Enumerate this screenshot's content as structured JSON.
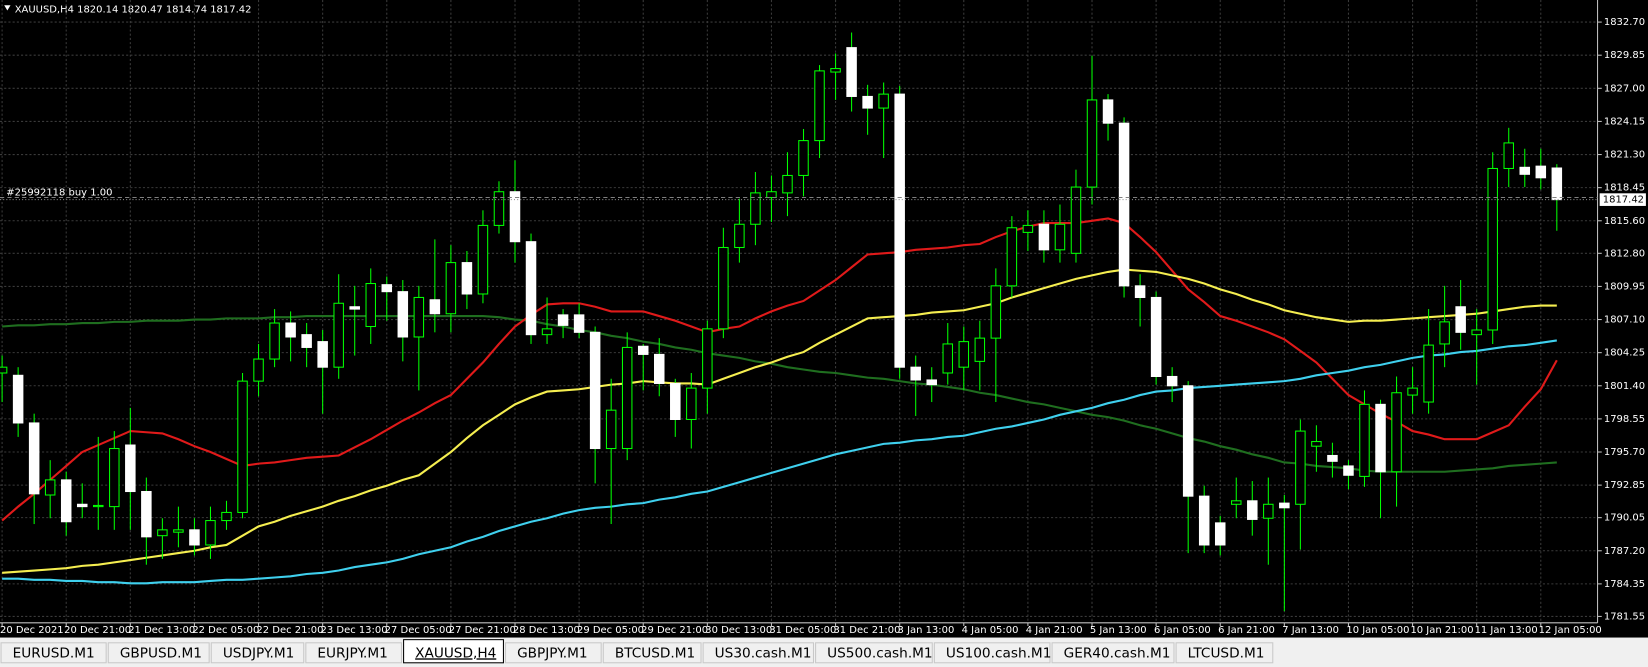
{
  "chart_data": {
    "type": "candlestick",
    "title": "XAUUSD,H4  1820.14 1820.47 1814.74 1817.42",
    "categories": [
      "20 Dec 2021",
      null,
      null,
      null,
      "20 Dec 21:00",
      null,
      null,
      null,
      "21 Dec 13:00",
      null,
      null,
      null,
      "22 Dec 05:00",
      null,
      null,
      null,
      "22 Dec 21:00",
      null,
      null,
      null,
      "23 Dec 13:00",
      null,
      null,
      null,
      "27 Dec 05:00",
      null,
      null,
      null,
      "27 Dec 21:00",
      null,
      null,
      null,
      "28 Dec 13:00",
      null,
      null,
      null,
      "29 Dec 05:00",
      null,
      null,
      null,
      "29 Dec 21:00",
      null,
      null,
      null,
      "30 Dec 13:00",
      null,
      null,
      null,
      "31 Dec 05:00",
      null,
      null,
      null,
      "31 Dec 21:00",
      null,
      null,
      null,
      "3 Jan 13:00",
      null,
      null,
      null,
      "4 Jan 05:00",
      null,
      null,
      null,
      "4 Jan 21:00",
      null,
      null,
      null,
      "5 Jan 13:00",
      null,
      null,
      null,
      "6 Jan 05:00",
      null,
      null,
      null,
      "6 Jan 21:00",
      null,
      null,
      null,
      "7 Jan 13:00",
      null,
      null,
      null,
      "10 Jan 05:00",
      null,
      null,
      null,
      "10 Jan 21:00",
      null,
      null,
      null,
      "11 Jan 13:00",
      null,
      null,
      null,
      "12 Jan 05:00",
      null
    ],
    "open": [
      1802.5,
      1802.3,
      1798.2,
      1792,
      1793.3,
      1791.2,
      1791,
      1791,
      1796.3,
      1792.3,
      1788.5,
      1788.8,
      1789,
      1787.7,
      1789.8,
      1790.5,
      1801.8,
      1803.7,
      1806.8,
      1805.8,
      1805.2,
      1803,
      1808.2,
      1806.5,
      1810.1,
      1809.5,
      1805.6,
      1808.8,
      1807.6,
      1812,
      1809.3,
      1815.2,
      1818.1,
      1813.8,
      1805.8,
      1807.5,
      1807.5,
      1806,
      1796,
      1796,
      1804.8,
      1804.1,
      1801.6,
      1798.5,
      1801.2,
      1806.3,
      1813.3,
      1815.3,
      1817.6,
      1818,
      1819.5,
      1822.5,
      1828.4,
      1830.5,
      1826.3,
      1825.3,
      1826.5,
      1803,
      1801.9,
      1802.5,
      1803,
      1803.5,
      1805.5,
      1810,
      1814.6,
      1815.3,
      1813.1,
      1812.8,
      1818.5,
      1826,
      1824,
      1810,
      1809,
      1802.2,
      1801.4,
      1791.9,
      1789.6,
      1791.2,
      1791.5,
      1790,
      1791.3,
      1791.2,
      1796.2,
      1795.4,
      1794.5,
      1793.6,
      1799.8,
      1794,
      1800.6,
      1800,
      1805,
      1808.2,
      1805.8,
      1806.2,
      1820.1,
      1820.2,
      1820.3,
      1820.14
    ],
    "high": [
      1804,
      1803,
      1799,
      1795,
      1794,
      1793,
      1797,
      1797.5,
      1799.5,
      1793.5,
      1790,
      1791,
      1790,
      1791,
      1791.5,
      1802.5,
      1805,
      1808,
      1807.8,
      1806.8,
      1806.2,
      1811,
      1810,
      1811.5,
      1810.8,
      1810.5,
      1810,
      1814,
      1813.5,
      1813,
      1816.5,
      1819,
      1820.8,
      1814.5,
      1809,
      1808,
      1808.5,
      1806.5,
      1802,
      1806,
      1805,
      1805.5,
      1802,
      1802.5,
      1807,
      1815,
      1817.5,
      1819.8,
      1819.5,
      1821.5,
      1823.5,
      1829,
      1830,
      1831.8,
      1827.3,
      1827.5,
      1827.2,
      1804,
      1803,
      1806.8,
      1806.5,
      1807,
      1811.5,
      1816,
      1816.5,
      1816.5,
      1817,
      1820,
      1829.8,
      1826.5,
      1824.5,
      1811,
      1809.5,
      1803,
      1801.8,
      1792.8,
      1790.2,
      1793.5,
      1793.2,
      1793.5,
      1792,
      1798.5,
      1798,
      1796.5,
      1795,
      1801,
      1800.2,
      1802.2,
      1803,
      1808,
      1810,
      1810.5,
      1808,
      1821.5,
      1823.6,
      1821.8,
      1821.8,
      1820.47
    ],
    "low": [
      1800,
      1797,
      1789.5,
      1790,
      1788.5,
      1790,
      1789,
      1789,
      1789,
      1786,
      1786.5,
      1787.5,
      1786.8,
      1786.5,
      1789,
      1790,
      1800.5,
      1803,
      1803.5,
      1803,
      1799,
      1802,
      1804,
      1805,
      1807,
      1803.5,
      1801,
      1806,
      1806,
      1808,
      1808.5,
      1814.5,
      1812,
      1805,
      1805,
      1805.5,
      1805.5,
      1793,
      1789.5,
      1795,
      1801,
      1800.5,
      1797,
      1796,
      1799,
      1805.5,
      1812,
      1813.5,
      1815.5,
      1816,
      1817.7,
      1821,
      1826,
      1825,
      1823,
      1821,
      1802,
      1798.8,
      1800,
      1801.5,
      1801,
      1801,
      1800,
      1809,
      1813,
      1812,
      1812,
      1812,
      1817,
      1822.5,
      1809,
      1806.5,
      1801.5,
      1800,
      1787,
      1787,
      1786.8,
      1790,
      1788.5,
      1786,
      1782,
      1787.3,
      1794,
      1793.5,
      1792.5,
      1792.7,
      1790,
      1791,
      1799,
      1799,
      1803,
      1804.5,
      1801.5,
      1805,
      1818.5,
      1818.5,
      1818.3,
      1814.74
    ],
    "close": [
      1803,
      1798.2,
      1792.1,
      1793.3,
      1789.7,
      1791.0,
      1791.1,
      1796,
      1792.3,
      1788.4,
      1789,
      1789,
      1787.7,
      1789.8,
      1790.5,
      1801.8,
      1803.7,
      1806.8,
      1805.6,
      1804.7,
      1803,
      1808.5,
      1808,
      1810.2,
      1809.5,
      1805.6,
      1809,
      1807.6,
      1812,
      1809.3,
      1815.2,
      1818.1,
      1813.8,
      1805.8,
      1806.3,
      1806.6,
      1806,
      1796,
      1799.3,
      1804.7,
      1804.1,
      1801.6,
      1798.5,
      1801.2,
      1806.3,
      1813.3,
      1815.3,
      1818,
      1818.1,
      1819.5,
      1822.5,
      1828.5,
      1828.7,
      1826.3,
      1825.3,
      1826.5,
      1803,
      1801.9,
      1801.5,
      1805,
      1805.2,
      1805.5,
      1810,
      1815,
      1815.2,
      1813.1,
      1815.3,
      1818.5,
      1826,
      1824,
      1810,
      1809,
      1802.2,
      1801.4,
      1791.9,
      1787.7,
      1787.7,
      1791.5,
      1789.9,
      1791.2,
      1790.9,
      1797.5,
      1796.6,
      1794.9,
      1793.7,
      1799.8,
      1794,
      1800.8,
      1801.2,
      1804.9,
      1806.9,
      1806,
      1806.2,
      1820.1,
      1822.3,
      1819.6,
      1819.3,
      1817.42
    ],
    "up_color": "#00ff00",
    "down_color": "#ffffff",
    "series": [
      {
        "color": "#1f6e1f",
        "values": [
          1806.5,
          1806.6,
          1806.6,
          1806.7,
          1806.7,
          1806.8,
          1806.8,
          1806.9,
          1806.9,
          1807.0,
          1807.0,
          1807.0,
          1807.1,
          1807.1,
          1807.2,
          1807.2,
          1807.2,
          1807.3,
          1807.3,
          1807.4,
          1807.4,
          1807.4,
          1807.4,
          1807.4,
          1807.4,
          1807.4,
          1807.4,
          1807.4,
          1807.4,
          1807.4,
          1807.4,
          1807.3,
          1807.1,
          1807.0,
          1806.7,
          1806.5,
          1806.2,
          1806.0,
          1805.7,
          1805.5,
          1805.2,
          1805.0,
          1804.7,
          1804.5,
          1804.2,
          1804.0,
          1803.8,
          1803.5,
          1803.3,
          1803.0,
          1802.8,
          1802.6,
          1802.5,
          1802.3,
          1802.1,
          1802.0,
          1801.8,
          1801.6,
          1801.5,
          1801.3,
          1801.1,
          1800.8,
          1800.6,
          1800.3,
          1800.0,
          1799.8,
          1799.5,
          1799.2,
          1798.9,
          1798.7,
          1798.4,
          1798.0,
          1797.7,
          1797.3,
          1796.9,
          1796.6,
          1796.2,
          1795.9,
          1795.5,
          1795.2,
          1794.8,
          1794.7,
          1794.5,
          1794.4,
          1794.3,
          1794.1,
          1794.0,
          1794.0,
          1794.0,
          1794.0,
          1794.0,
          1794.1,
          1794.2,
          1794.3,
          1794.5,
          1794.6,
          1794.7,
          1794.8
        ]
      },
      {
        "color": "#e01a1a",
        "values": [
          1789.8,
          1791.0,
          1792.1,
          1793.3,
          1794.5,
          1795.7,
          1796.3,
          1796.9,
          1797.5,
          1797.4,
          1797.3,
          1796.8,
          1796.2,
          1795.7,
          1795.1,
          1794.5,
          1794.7,
          1794.8,
          1795.0,
          1795.2,
          1795.3,
          1795.4,
          1796.1,
          1796.8,
          1797.6,
          1798.4,
          1799.1,
          1799.9,
          1800.6,
          1802.0,
          1803.4,
          1805.0,
          1806.5,
          1807.5,
          1808.4,
          1808.5,
          1808.5,
          1808.2,
          1807.8,
          1807.8,
          1807.8,
          1807.4,
          1807.0,
          1806.5,
          1806.0,
          1806.3,
          1806.5,
          1807.2,
          1807.8,
          1808.3,
          1808.7,
          1809.6,
          1810.5,
          1811.6,
          1812.7,
          1812.8,
          1812.9,
          1813.1,
          1813.2,
          1813.3,
          1813.5,
          1813.6,
          1814.2,
          1814.7,
          1815.1,
          1815.4,
          1815.4,
          1815.4,
          1815.6,
          1815.8,
          1815.4,
          1814.2,
          1812.9,
          1811.3,
          1809.7,
          1808.6,
          1807.4,
          1807.0,
          1806.5,
          1806.0,
          1805.4,
          1804.4,
          1803.4,
          1802.0,
          1800.6,
          1799.8,
          1799.0,
          1798.3,
          1797.5,
          1797.2,
          1796.8,
          1796.8,
          1796.8,
          1797.4,
          1798.0,
          1799.6,
          1801.1,
          1803.6
        ]
      },
      {
        "color": "#f5ee50",
        "values": [
          1785.3,
          1785.4,
          1785.5,
          1785.6,
          1785.7,
          1785.9,
          1786.0,
          1786.2,
          1786.4,
          1786.6,
          1786.8,
          1787.0,
          1787.2,
          1787.5,
          1787.7,
          1788.5,
          1789.3,
          1789.7,
          1790.2,
          1790.6,
          1791.0,
          1791.5,
          1791.9,
          1792.4,
          1792.8,
          1793.3,
          1793.7,
          1794.7,
          1795.7,
          1796.9,
          1798.0,
          1798.9,
          1799.8,
          1800.4,
          1800.9,
          1801.0,
          1801.1,
          1801.3,
          1801.5,
          1801.6,
          1801.8,
          1801.7,
          1801.6,
          1801.6,
          1801.5,
          1802.0,
          1802.5,
          1803.0,
          1803.4,
          1803.9,
          1804.3,
          1805.1,
          1805.8,
          1806.5,
          1807.2,
          1807.3,
          1807.4,
          1807.5,
          1807.7,
          1807.8,
          1807.9,
          1808.2,
          1808.5,
          1809.0,
          1809.4,
          1809.8,
          1810.2,
          1810.6,
          1810.9,
          1811.2,
          1811.4,
          1811.3,
          1811.2,
          1810.9,
          1810.6,
          1810.2,
          1809.7,
          1809.3,
          1808.8,
          1808.4,
          1807.9,
          1807.6,
          1807.3,
          1807.1,
          1806.9,
          1807.0,
          1807.0,
          1807.1,
          1807.2,
          1807.3,
          1807.4,
          1807.5,
          1807.6,
          1807.8,
          1808.0,
          1808.2,
          1808.3,
          1808.3
        ]
      },
      {
        "color": "#3fd0ee",
        "values": [
          1784.8,
          1784.8,
          1784.7,
          1784.7,
          1784.6,
          1784.6,
          1784.5,
          1784.5,
          1784.4,
          1784.4,
          1784.5,
          1784.5,
          1784.5,
          1784.6,
          1784.7,
          1784.7,
          1784.8,
          1784.9,
          1785.0,
          1785.2,
          1785.3,
          1785.5,
          1785.8,
          1786.0,
          1786.2,
          1786.5,
          1786.9,
          1787.2,
          1787.5,
          1788.0,
          1788.4,
          1788.9,
          1789.3,
          1789.7,
          1790.0,
          1790.4,
          1790.7,
          1790.9,
          1791.0,
          1791.2,
          1791.3,
          1791.6,
          1791.8,
          1792.1,
          1792.3,
          1792.7,
          1793.1,
          1793.5,
          1793.9,
          1794.3,
          1794.7,
          1795.1,
          1795.5,
          1795.8,
          1796.1,
          1796.4,
          1796.5,
          1796.7,
          1796.8,
          1797.0,
          1797.1,
          1797.4,
          1797.7,
          1797.9,
          1798.2,
          1798.5,
          1798.9,
          1799.2,
          1799.5,
          1799.9,
          1800.2,
          1800.6,
          1800.9,
          1801.0,
          1801.2,
          1801.3,
          1801.4,
          1801.5,
          1801.6,
          1801.7,
          1801.8,
          1802.0,
          1802.3,
          1802.5,
          1802.7,
          1803.0,
          1803.2,
          1803.5,
          1803.8,
          1804.0,
          1804.1,
          1804.3,
          1804.4,
          1804.6,
          1804.8,
          1804.9,
          1805.1,
          1805.3
        ]
      }
    ],
    "ylim": [
      1781.0,
      1834.6
    ],
    "yticks": [
      {
        "value": 1832.7,
        "label": "1832.70"
      },
      {
        "value": 1829.85,
        "label": "1829.85"
      },
      {
        "value": 1827.0,
        "label": "1827.00"
      },
      {
        "value": 1824.15,
        "label": "1824.15"
      },
      {
        "value": 1821.3,
        "label": "1821.30"
      },
      {
        "value": 1818.45,
        "label": "1818.45"
      },
      {
        "value": 1815.6,
        "label": "1815.60"
      },
      {
        "value": 1812.8,
        "label": "1812.80"
      },
      {
        "value": 1809.95,
        "label": "1809.95"
      },
      {
        "value": 1807.1,
        "label": "1807.10"
      },
      {
        "value": 1804.25,
        "label": "1804.25"
      },
      {
        "value": 1801.4,
        "label": "1801.40"
      },
      {
        "value": 1798.55,
        "label": "1798.55"
      },
      {
        "value": 1795.7,
        "label": "1795.70"
      },
      {
        "value": 1792.85,
        "label": "1792.85"
      },
      {
        "value": 1790.05,
        "label": "1790.05"
      },
      {
        "value": 1787.2,
        "label": "1787.20"
      },
      {
        "value": 1784.35,
        "label": "1784.35"
      },
      {
        "value": 1781.55,
        "label": "1781.55"
      }
    ],
    "grid": true,
    "price_line": {
      "value": 1817.42,
      "label": "1817.42"
    },
    "order_line": {
      "value": 1817.6,
      "label": "#25992118 buy 1.00"
    }
  },
  "tabs": [
    "EURUSD.M1",
    "GBPUSD.M1",
    "USDJPY.M1",
    "EURJPY.M1",
    "XAUUSD,H4",
    "GBPJPY.M1",
    "BTCUSD.M1",
    "US30.cash.M1",
    "US500.cash.M1",
    "US100.cash.M1",
    "GER40.cash.M1",
    "LTCUSD.M1"
  ],
  "active_tab": 4
}
